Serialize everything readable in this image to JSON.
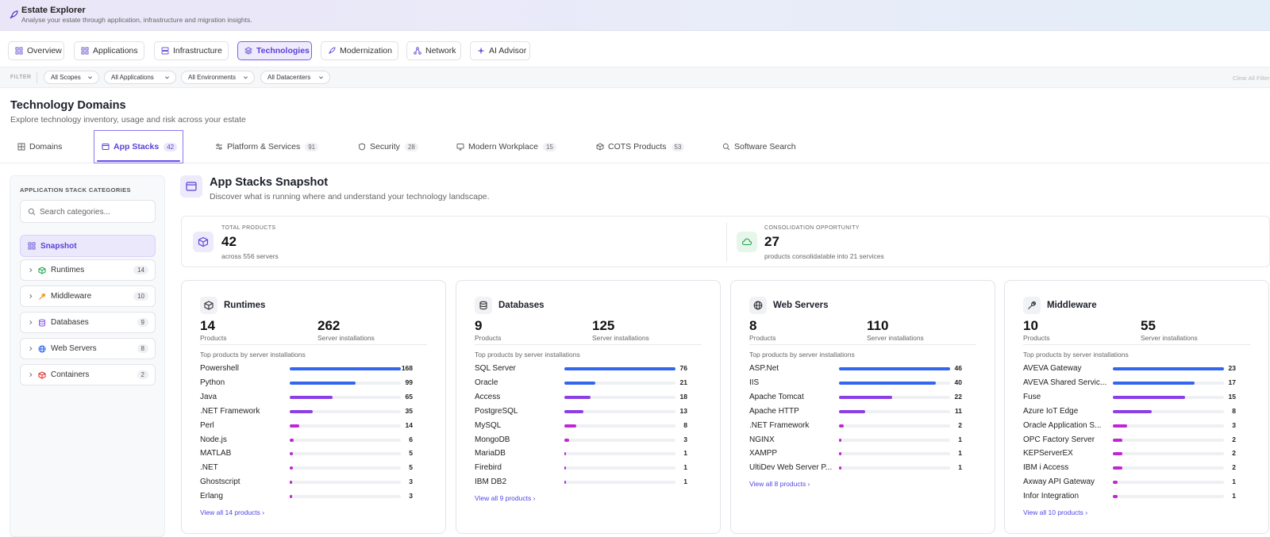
{
  "banner": {
    "title": "Estate Explorer",
    "subtitle": "Analyse your estate through application, infrastructure and migration insights."
  },
  "nav_tabs": [
    {
      "label": "Overview",
      "icon": "grid-icon",
      "active": false
    },
    {
      "label": "Applications",
      "icon": "apps-icon",
      "active": false
    },
    {
      "label": "Infrastructure",
      "icon": "server-icon",
      "active": false
    },
    {
      "label": "Technologies",
      "icon": "layers-icon",
      "active": true
    },
    {
      "label": "Modernization",
      "icon": "rocket-icon",
      "active": false
    },
    {
      "label": "Network",
      "icon": "network-icon",
      "active": false
    },
    {
      "label": "AI Advisor",
      "icon": "sparkle-icon",
      "active": false
    }
  ],
  "filters": {
    "label": "FILTER",
    "items": [
      {
        "label": "All Scopes"
      },
      {
        "label": "All Applications"
      },
      {
        "label": "All Environments"
      },
      {
        "label": "All Datacenters"
      }
    ],
    "clear_label": "Clear All Filters"
  },
  "page": {
    "title": "Technology Domains",
    "subtitle": "Explore technology inventory, usage and risk across your estate"
  },
  "domain_tabs": [
    {
      "label": "Domains",
      "count": "",
      "icon": "grid-icon",
      "active": false
    },
    {
      "label": "App Stacks",
      "count": "42",
      "icon": "window-icon",
      "active": true
    },
    {
      "label": "Platform & Services",
      "count": "91",
      "icon": "sliders-icon",
      "active": false
    },
    {
      "label": "Security",
      "count": "28",
      "icon": "shield-icon",
      "active": false
    },
    {
      "label": "Modern Workplace",
      "count": "15",
      "icon": "monitor-icon",
      "active": false
    },
    {
      "label": "COTS Products",
      "count": "53",
      "icon": "box-icon",
      "active": false
    },
    {
      "label": "Software Search",
      "count": "",
      "icon": "search-icon",
      "active": false
    }
  ],
  "sidebar": {
    "title": "APPLICATION STACK CATEGORIES",
    "search_placeholder": "Search categories...",
    "items": [
      {
        "label": "Snapshot",
        "count": "",
        "icon": "grid-icon",
        "active": true
      },
      {
        "label": "Runtimes",
        "count": "14",
        "icon": "cube-icon",
        "color": "#16a34a"
      },
      {
        "label": "Middleware",
        "count": "10",
        "icon": "wrench-icon",
        "color": "#ea8a0c"
      },
      {
        "label": "Databases",
        "count": "9",
        "icon": "database-icon",
        "color": "#8b5cf6"
      },
      {
        "label": "Web Servers",
        "count": "8",
        "icon": "globe-icon",
        "color": "#2563eb"
      },
      {
        "label": "Containers",
        "count": "2",
        "icon": "container-icon",
        "color": "#dc2626"
      }
    ]
  },
  "snapshot": {
    "title": "App Stacks Snapshot",
    "subtitle": "Discover what is running where and understand your technology landscape.",
    "kpis": [
      {
        "label": "TOTAL PRODUCTS",
        "value": "42",
        "sub": "across 556 servers",
        "icon": "cube-icon"
      },
      {
        "label": "CONSOLIDATION OPPORTUNITY",
        "value": "27",
        "sub": "products consolidatable into 21 services",
        "icon": "cloud-icon"
      }
    ]
  },
  "colors": {
    "accent": "#5b3fd6",
    "bar_blue": "#3366ee",
    "bar_purple": "#8b3fe6",
    "bar_magenta": "#c026d3"
  },
  "cards": [
    {
      "title": "Runtimes",
      "icon": "cube-icon",
      "products": "14",
      "products_label": "Products",
      "installs": "262",
      "installs_label": "Server installations",
      "top_label": "Top products by server installations",
      "max": 168,
      "rows": [
        {
          "name": "Powershell",
          "value": 168
        },
        {
          "name": "Python",
          "value": 99
        },
        {
          "name": "Java",
          "value": 65
        },
        {
          "name": ".NET Framework",
          "value": 35
        },
        {
          "name": "Perl",
          "value": 14
        },
        {
          "name": "Node.js",
          "value": 6
        },
        {
          "name": "MATLAB",
          "value": 5
        },
        {
          "name": ".NET",
          "value": 5
        },
        {
          "name": "Ghostscript",
          "value": 3
        },
        {
          "name": "Erlang",
          "value": 3
        }
      ],
      "link": "View all 14 products ›"
    },
    {
      "title": "Databases",
      "icon": "database-icon",
      "products": "9",
      "products_label": "Products",
      "installs": "125",
      "installs_label": "Server installations",
      "top_label": "Top products by server installations",
      "max": 76,
      "rows": [
        {
          "name": "SQL Server",
          "value": 76
        },
        {
          "name": "Oracle",
          "value": 21
        },
        {
          "name": "Access",
          "value": 18
        },
        {
          "name": "PostgreSQL",
          "value": 13
        },
        {
          "name": "MySQL",
          "value": 8
        },
        {
          "name": "MongoDB",
          "value": 3
        },
        {
          "name": "MariaDB",
          "value": 1
        },
        {
          "name": "Firebird",
          "value": 1
        },
        {
          "name": "IBM DB2",
          "value": 1
        }
      ],
      "link": "View all 9 products ›"
    },
    {
      "title": "Web Servers",
      "icon": "globe-icon",
      "products": "8",
      "products_label": "Products",
      "installs": "110",
      "installs_label": "Server installations",
      "top_label": "Top products by server installations",
      "max": 46,
      "rows": [
        {
          "name": "ASP.Net",
          "value": 46
        },
        {
          "name": "IIS",
          "value": 40
        },
        {
          "name": "Apache Tomcat",
          "value": 22
        },
        {
          "name": "Apache HTTP",
          "value": 11
        },
        {
          "name": ".NET Framework",
          "value": 2
        },
        {
          "name": "NGINX",
          "value": 1
        },
        {
          "name": "XAMPP",
          "value": 1
        },
        {
          "name": "UltiDev Web Server P...",
          "value": 1
        }
      ],
      "link": "View all 8 products ›"
    },
    {
      "title": "Middleware",
      "icon": "wrench-icon",
      "products": "10",
      "products_label": "Products",
      "installs": "55",
      "installs_label": "Server installations",
      "top_label": "Top products by server installations",
      "max": 23,
      "rows": [
        {
          "name": "AVEVA Gateway",
          "value": 23
        },
        {
          "name": "AVEVA Shared Servic...",
          "value": 17
        },
        {
          "name": "Fuse",
          "value": 15
        },
        {
          "name": "Azure IoT Edge",
          "value": 8
        },
        {
          "name": "Oracle Application S...",
          "value": 3
        },
        {
          "name": "OPC Factory Server",
          "value": 2
        },
        {
          "name": "KEPServerEX",
          "value": 2
        },
        {
          "name": "IBM i Access",
          "value": 2
        },
        {
          "name": "Axway API Gateway",
          "value": 1
        },
        {
          "name": "Infor Integration",
          "value": 1
        }
      ],
      "link": "View all 10 products ›"
    }
  ]
}
